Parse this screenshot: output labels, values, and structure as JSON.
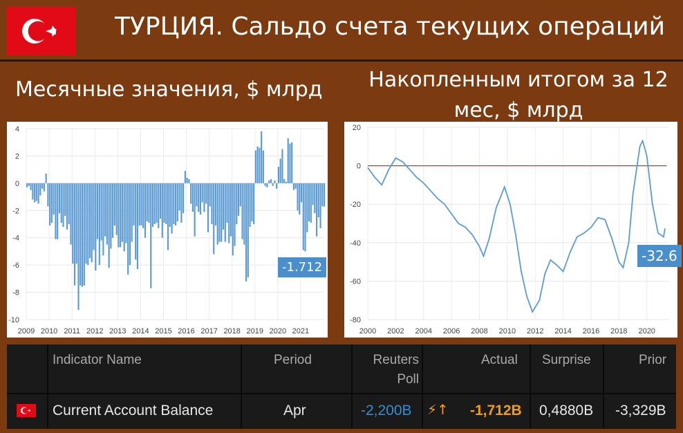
{
  "header": {
    "title": "ТУРЦИЯ. Сальдо счета текущих операций",
    "subtitle_left": "Месячные значения, $ млрд",
    "subtitle_right": "Накопленным итогом за 12 мес, $ млрд"
  },
  "colors": {
    "background": "#7b3a10",
    "bar": "#5b9bd5",
    "line": "#5b9bd5",
    "zero_line": "#c0392b",
    "flag": "#e30a17",
    "reuters_poll": "#2e8fd8",
    "actual": "#f39c12"
  },
  "chart_data": [
    {
      "type": "bar",
      "x_start": 2009,
      "x_tick_labels": [
        "2009",
        "2010",
        "2011",
        "2012",
        "2013",
        "2014",
        "2015",
        "2016",
        "2017",
        "2018",
        "2019",
        "2020",
        "2021"
      ],
      "y_tick_labels": [
        "4",
        "2",
        "0",
        "-2",
        "-4",
        "-6",
        "-8",
        "-10"
      ],
      "ylim": [
        -10,
        4
      ],
      "grid": true,
      "callout": "-1.712",
      "values": [
        -0.3,
        -0.2,
        -0.5,
        -1.2,
        -1.4,
        -1.3,
        -1.5,
        -0.9,
        -0.4,
        -0.6,
        0.7,
        -1.7,
        -3.1,
        -2.9,
        -2.3,
        -4.1,
        -4.1,
        -2.2,
        -2.9,
        -3.2,
        -2.4,
        -3.4,
        -3.0,
        -4.5,
        -5.9,
        -7.5,
        -5.9,
        -9.3,
        -7.5,
        -7.6,
        -7.5,
        -5.9,
        -6.0,
        -5.5,
        -5.8,
        -4.9,
        -6.4,
        -4.1,
        -6.0,
        -4.2,
        -5.3,
        -3.9,
        -4.5,
        -6.2,
        -4.8,
        -4.0,
        -3.1,
        -3.8,
        -4.7,
        -4.7,
        -4.3,
        -5.0,
        -4.4,
        -6.7,
        -6.0,
        -4.3,
        -3.1,
        -5.6,
        -6.3,
        -3.1,
        -3.1,
        -3.3,
        -4.0,
        -2.8,
        -2.9,
        -7.7,
        -3.2,
        -3.0,
        -2.9,
        -3.3,
        -2.6,
        -4.0,
        -2.9,
        -3.0,
        -4.9,
        -3.2,
        -3.7,
        -3.0,
        -3.1,
        -2.8,
        -2.0,
        -2.9,
        -2.2,
        0.9,
        0.4,
        0.3,
        -1.5,
        -2.1,
        -3.9,
        -1.7,
        -2.1,
        -2.3,
        -1.4,
        -2.1,
        -1.5,
        -3.6,
        -1.7,
        -3.0,
        -5.2,
        -3.1,
        -4.5,
        -4.3,
        -4.3,
        -3.4,
        -4.3,
        -2.9,
        -4.4,
        -3.9,
        -5.3,
        -4.6,
        -3.0,
        -2.4,
        -1.7,
        -4.1,
        -4.5,
        -7.2,
        -6.9,
        -3.2,
        -2.8,
        -3.0,
        2.4,
        2.7,
        2.6,
        3.8,
        2.4,
        -0.2,
        -0.3,
        0.2,
        0.3,
        -0.2,
        0.2,
        -0.4,
        1.2,
        1.8,
        2.5,
        0.3,
        0.1,
        3.3,
        2.9,
        3.0,
        -0.5,
        -0.4,
        -2.0,
        -2.3,
        -1.4,
        -4.9,
        -5.0,
        -3.6,
        -2.8,
        -2.9,
        -1.6,
        -2.2,
        -3.9,
        -2.5,
        -3.3,
        -1.7,
        -1.712
      ]
    },
    {
      "type": "line",
      "x_start": 2000,
      "x_tick_labels": [
        "2000",
        "2002",
        "2004",
        "2006",
        "2008",
        "2010",
        "2012",
        "2014",
        "2016",
        "2018",
        "2020"
      ],
      "y_tick_labels": [
        "20",
        "0",
        "-20",
        "-40",
        "-60",
        "-80"
      ],
      "ylim": [
        -80,
        20
      ],
      "zero_line": true,
      "callout": "-32.6",
      "points": [
        [
          2000,
          -1
        ],
        [
          2000.5,
          -6
        ],
        [
          2001,
          -10
        ],
        [
          2001.5,
          -2
        ],
        [
          2002,
          4
        ],
        [
          2002.5,
          2
        ],
        [
          2003,
          -2
        ],
        [
          2003.5,
          -6
        ],
        [
          2004,
          -9
        ],
        [
          2004.5,
          -13
        ],
        [
          2005,
          -17
        ],
        [
          2005.5,
          -20
        ],
        [
          2006,
          -25
        ],
        [
          2006.5,
          -30
        ],
        [
          2007,
          -32
        ],
        [
          2007.5,
          -36
        ],
        [
          2008,
          -42
        ],
        [
          2008.3,
          -47
        ],
        [
          2008.7,
          -38
        ],
        [
          2009.2,
          -22
        ],
        [
          2009.8,
          -11
        ],
        [
          2010.2,
          -20
        ],
        [
          2010.6,
          -36
        ],
        [
          2011,
          -55
        ],
        [
          2011.4,
          -68
        ],
        [
          2011.8,
          -76
        ],
        [
          2012.3,
          -70
        ],
        [
          2012.7,
          -56
        ],
        [
          2013.1,
          -49
        ],
        [
          2013.6,
          -52
        ],
        [
          2014,
          -55
        ],
        [
          2014.5,
          -45
        ],
        [
          2015,
          -37
        ],
        [
          2015.5,
          -35
        ],
        [
          2016,
          -32
        ],
        [
          2016.5,
          -27
        ],
        [
          2017,
          -28
        ],
        [
          2017.5,
          -38
        ],
        [
          2018,
          -50
        ],
        [
          2018.3,
          -53
        ],
        [
          2018.7,
          -40
        ],
        [
          2019,
          -15
        ],
        [
          2019.5,
          10
        ],
        [
          2019.7,
          13
        ],
        [
          2020,
          5
        ],
        [
          2020.4,
          -20
        ],
        [
          2020.8,
          -35
        ],
        [
          2021.2,
          -37
        ],
        [
          2021.3,
          -32.6
        ]
      ]
    }
  ],
  "table": {
    "headers": {
      "indicator": "Indicator Name",
      "period": "Period",
      "poll_line1": "Reuters",
      "poll_line2": "Poll",
      "actual": "Actual",
      "surprise": "Surprise",
      "prior": "Prior"
    },
    "row": {
      "indicator": "Current Account Balance",
      "period": "Apr",
      "poll": "-2,200B",
      "actual": "-1,712B",
      "surprise": "0,4880B",
      "prior": "-3,329B"
    }
  }
}
